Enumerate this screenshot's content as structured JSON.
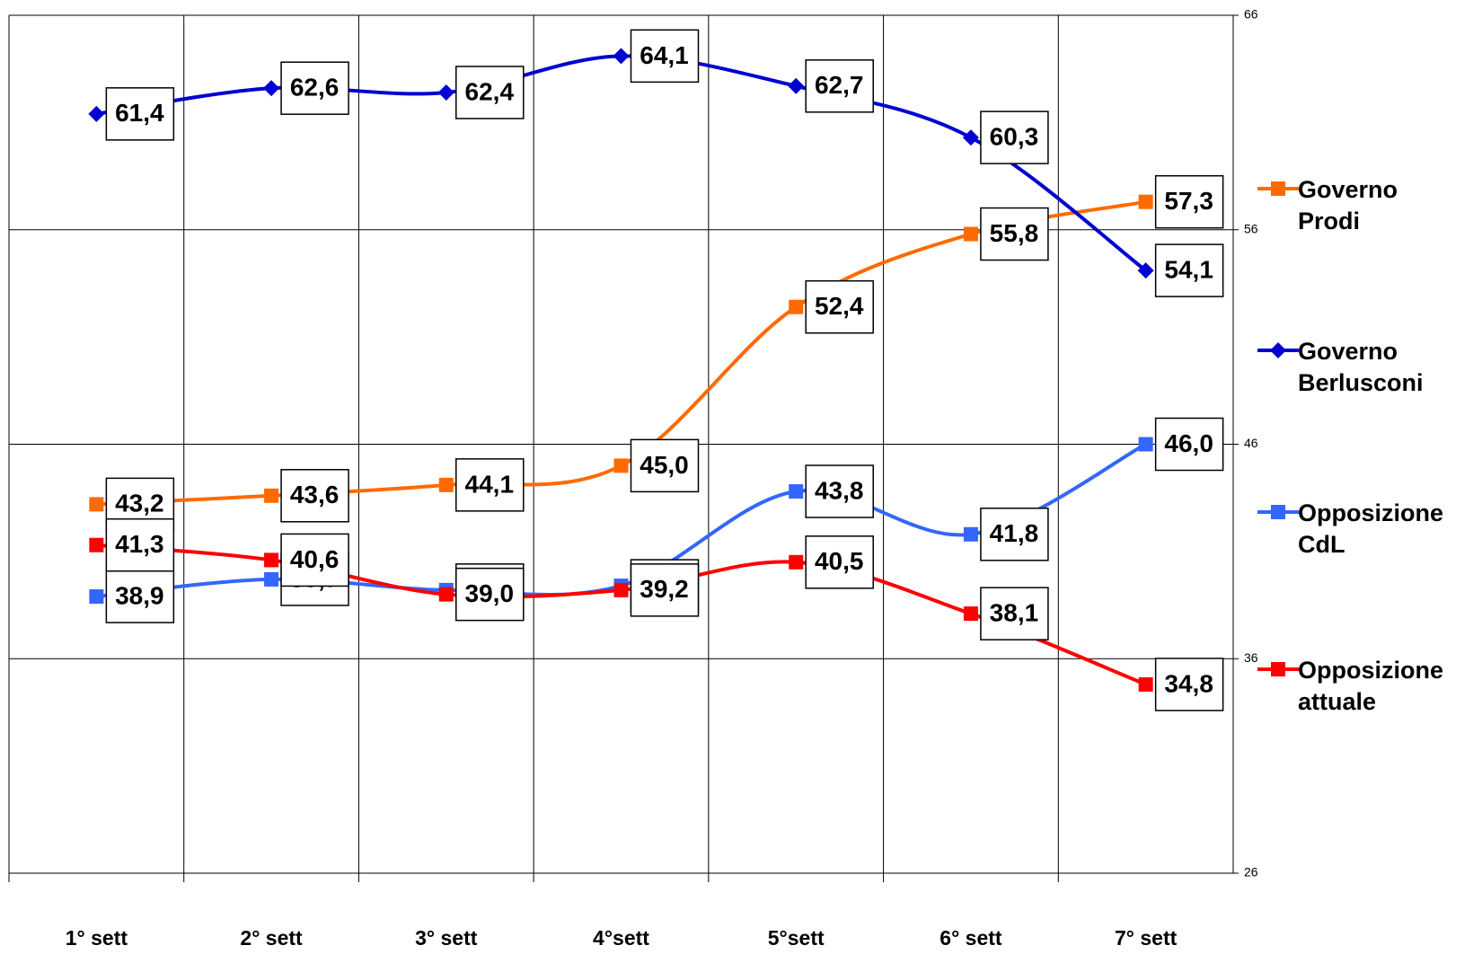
{
  "chart_data": {
    "type": "line",
    "categories": [
      "1° sett",
      "2° sett",
      "3° sett",
      "4°sett",
      "5°sett",
      "6° sett",
      "7° sett"
    ],
    "series": [
      {
        "name": "Governo Prodi",
        "color": "#ff6a00",
        "marker": "square",
        "values": [
          43.2,
          43.6,
          44.1,
          45.0,
          52.4,
          55.8,
          57.3
        ],
        "value_labels": [
          "43,2",
          "43,6",
          "44,1",
          "45,0",
          "52,4",
          "55,8",
          "57,3"
        ]
      },
      {
        "name": "Governo Berlusconi",
        "color": "#0000d0",
        "marker": "diamond",
        "values": [
          61.4,
          62.6,
          62.4,
          64.1,
          62.7,
          60.3,
          54.1
        ],
        "value_labels": [
          "61,4",
          "62,6",
          "62,4",
          "64,1",
          "62,7",
          "60,3",
          "54,1"
        ]
      },
      {
        "name": "Opposizione CdL",
        "color": "#3366ff",
        "marker": "square",
        "values": [
          38.9,
          39.7,
          39.2,
          39.4,
          43.8,
          41.8,
          46.0
        ],
        "value_labels": [
          "38,9",
          "39,7",
          "39,2",
          "39,4",
          "43,8",
          "41,8",
          "46,0"
        ]
      },
      {
        "name": "Opposizione attuale",
        "color": "#ff0000",
        "marker": "square",
        "values": [
          41.3,
          40.6,
          39.0,
          39.2,
          40.5,
          38.1,
          34.8
        ],
        "value_labels": [
          "41,3",
          "40,6",
          "39,0",
          "39,2",
          "40,5",
          "38,1",
          "34,8"
        ]
      }
    ],
    "ylim": [
      26,
      66
    ],
    "yticks": [
      26,
      36,
      46,
      56,
      66
    ],
    "grid": true,
    "legend": "right"
  }
}
